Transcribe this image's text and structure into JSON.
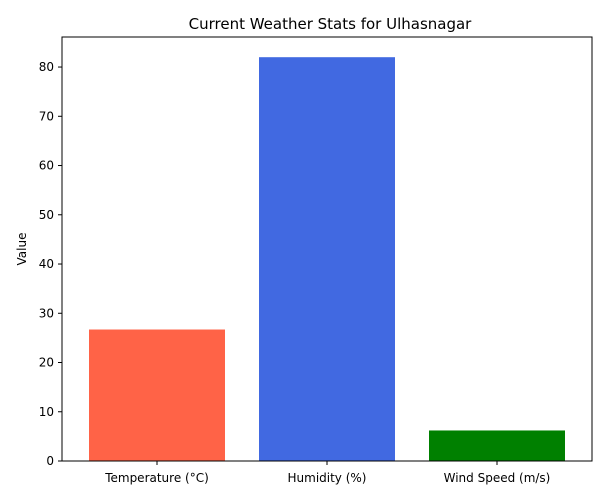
{
  "chart_data": {
    "type": "bar",
    "title": "Current Weather Stats for Ulhasnagar",
    "xlabel": "",
    "ylabel": "Value",
    "categories": [
      "Temperature (°C)",
      "Humidity (%)",
      "Wind Speed (m/s)"
    ],
    "values": [
      26.7,
      82,
      6.2
    ],
    "colors": [
      "#ff6347",
      "#4169e1",
      "#008000"
    ],
    "ylim": [
      0,
      86.1
    ],
    "yticks": [
      0,
      10,
      20,
      30,
      40,
      50,
      60,
      70,
      80
    ],
    "grid": false,
    "legend": "none"
  }
}
